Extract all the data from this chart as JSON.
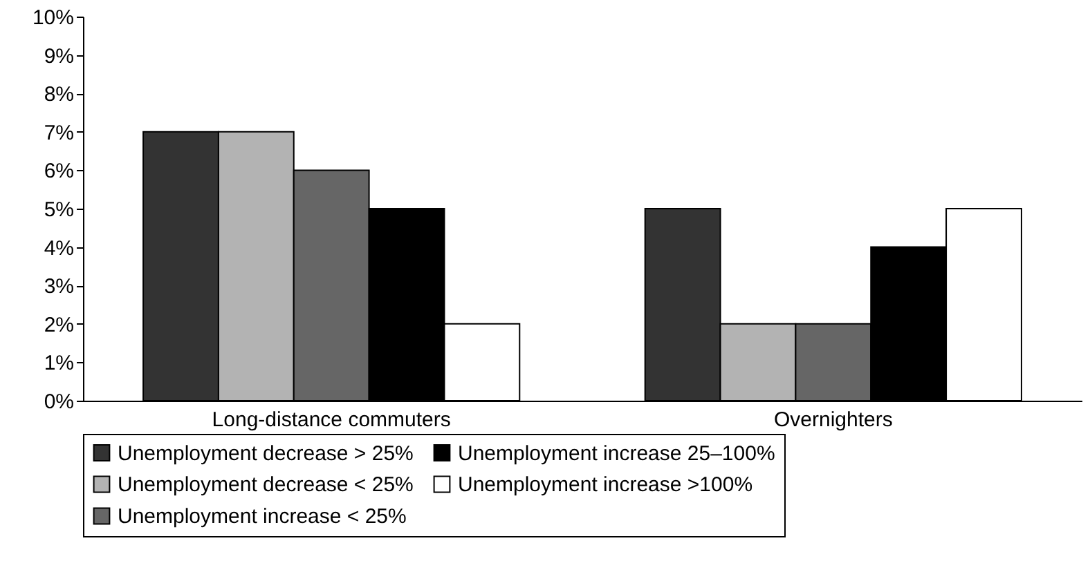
{
  "chart_data": {
    "type": "bar",
    "categories": [
      "Long-distance commuters",
      "Overnighters"
    ],
    "series": [
      {
        "name": "Unemployment decrease > 25%",
        "color": "#333333",
        "values": [
          7,
          5
        ]
      },
      {
        "name": "Unemployment decrease < 25%",
        "color": "#b3b3b3",
        "values": [
          7,
          2
        ]
      },
      {
        "name": "Unemployment increase < 25%",
        "color": "#666666",
        "values": [
          6,
          2
        ]
      },
      {
        "name": "Unemployment increase 25–100%",
        "color": "#000000",
        "values": [
          5,
          4
        ]
      },
      {
        "name": "Unemployment increase >100%",
        "color": "#ffffff",
        "values": [
          2,
          5
        ]
      }
    ],
    "ylim": [
      0,
      10
    ],
    "yticks": [
      {
        "value": 0,
        "label": "0%"
      },
      {
        "value": 1,
        "label": "1%"
      },
      {
        "value": 2,
        "label": "2%"
      },
      {
        "value": 3,
        "label": "3%"
      },
      {
        "value": 4,
        "label": "4%"
      },
      {
        "value": 5,
        "label": "5%"
      },
      {
        "value": 6,
        "label": "6%"
      },
      {
        "value": 7,
        "label": "7%"
      },
      {
        "value": 8,
        "label": "8%"
      },
      {
        "value": 9,
        "label": "9%"
      },
      {
        "value": 10,
        "label": "10%"
      }
    ],
    "grid": false,
    "legend": "bottom"
  }
}
